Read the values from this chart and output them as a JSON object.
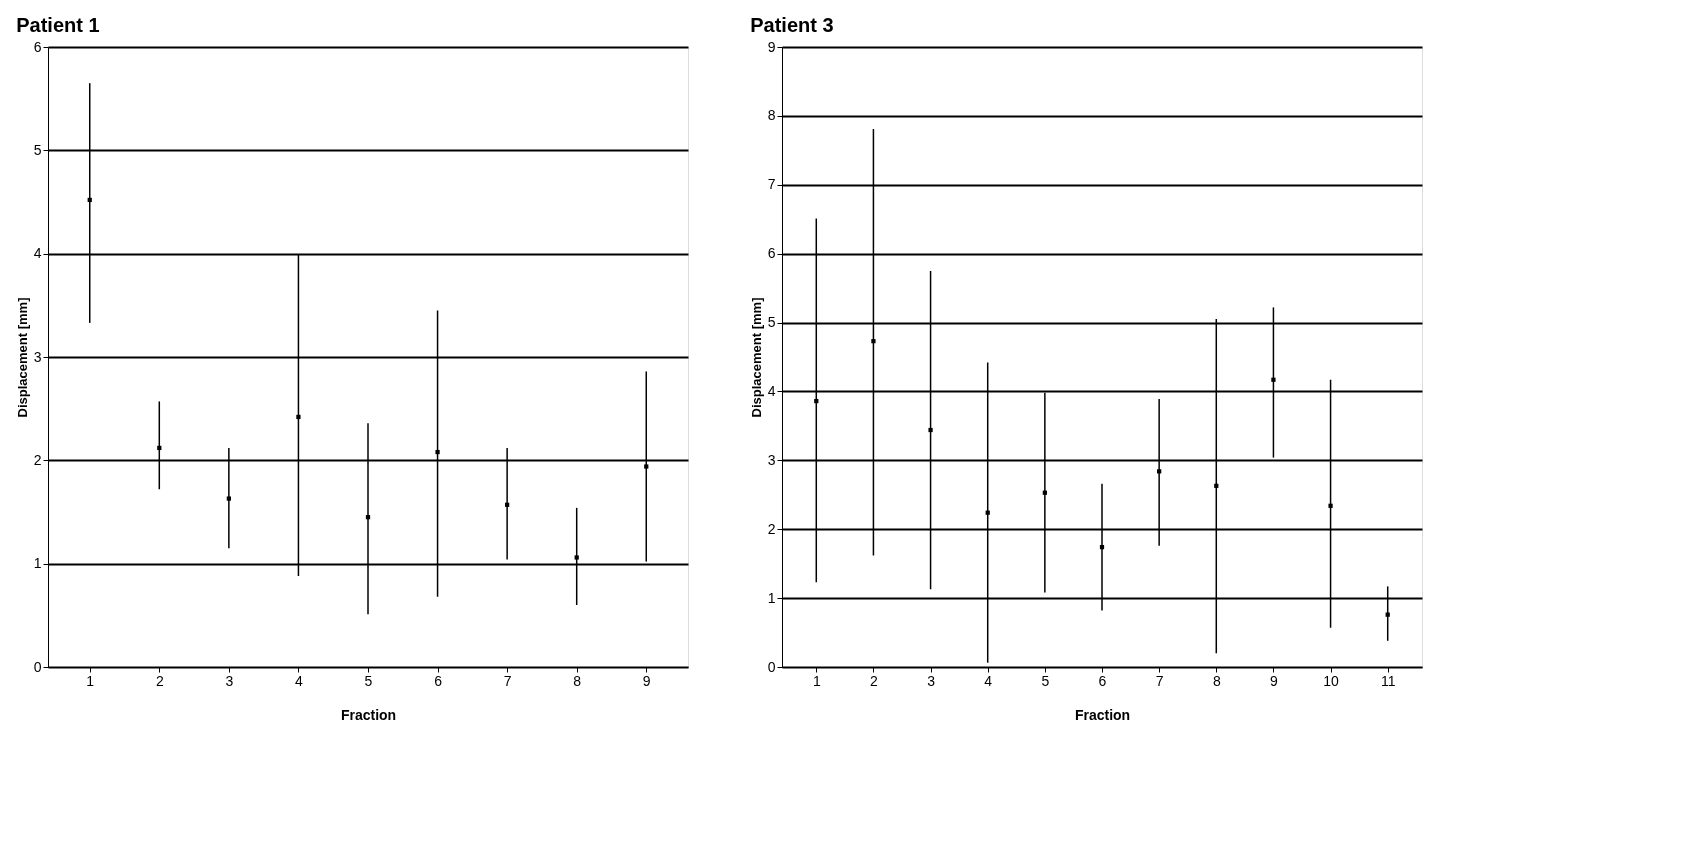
{
  "chart_data": [
    {
      "type": "scatter",
      "title": "Patient 1",
      "xlabel": "Fraction",
      "ylabel": "Displacement [mm]",
      "categories": [
        "1",
        "2",
        "3",
        "4",
        "5",
        "6",
        "7",
        "8",
        "9"
      ],
      "series": [
        {
          "color": "#000000",
          "values": [
            4.52,
            2.12,
            1.63,
            2.42,
            1.45,
            2.08,
            1.57,
            1.06,
            1.94
          ],
          "errors": [
            [
              3.33,
              5.65
            ],
            [
              1.72,
              2.57
            ],
            [
              1.15,
              2.12
            ],
            [
              0.88,
              3.99
            ],
            [
              0.51,
              2.36
            ],
            [
              0.68,
              3.45
            ],
            [
              1.04,
              2.12
            ],
            [
              0.6,
              1.54
            ],
            [
              1.02,
              2.86
            ]
          ]
        }
      ],
      "ylim": [
        0,
        6
      ],
      "yticks": [
        0,
        1,
        2,
        3,
        4,
        5,
        6
      ],
      "grid": "y",
      "marker": "square"
    },
    {
      "type": "scatter",
      "title": "Patient 3",
      "xlabel": "Fraction",
      "ylabel": "Displacement [mm]",
      "categories": [
        "1",
        "2",
        "3",
        "4",
        "5",
        "6",
        "7",
        "8",
        "9",
        "10",
        "11"
      ],
      "series": [
        {
          "color": "#000000",
          "values": [
            3.86,
            4.73,
            3.44,
            2.24,
            2.53,
            1.74,
            2.84,
            2.63,
            4.17,
            2.34,
            0.76
          ],
          "errors": [
            [
              1.23,
              6.51
            ],
            [
              1.62,
              7.81
            ],
            [
              1.13,
              5.75
            ],
            [
              0.06,
              4.42
            ],
            [
              1.08,
              3.98
            ],
            [
              0.82,
              2.66
            ],
            [
              1.76,
              3.89
            ],
            [
              0.2,
              5.05
            ],
            [
              3.04,
              5.22
            ],
            [
              0.57,
              4.17
            ],
            [
              0.38,
              1.17
            ]
          ]
        }
      ],
      "ylim": [
        0,
        9
      ],
      "yticks": [
        0,
        1,
        2,
        3,
        4,
        5,
        6,
        7,
        8,
        9
      ],
      "grid": "y",
      "marker": "square"
    }
  ]
}
